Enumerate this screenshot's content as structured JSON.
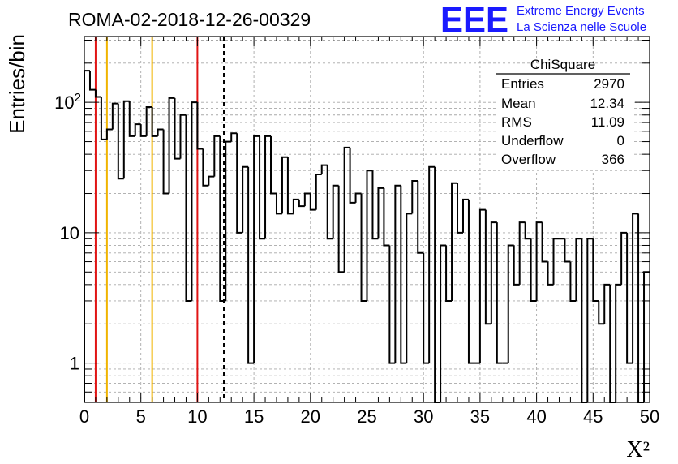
{
  "title": "ROMA-02-2018-12-26-00329",
  "logo": {
    "mark": "EEE",
    "line1": "Extreme Energy Events",
    "line2": "La Scienza nelle Scuole",
    "color": "#1a1aff"
  },
  "stats_box": {
    "header": "ChiSquare",
    "rows": [
      {
        "label": "Entries",
        "value": "2970"
      },
      {
        "label": "Mean",
        "value": "12.34"
      },
      {
        "label": "RMS",
        "value": "11.09"
      },
      {
        "label": "Underflow",
        "value": "0"
      },
      {
        "label": "Overflow",
        "value": "366"
      }
    ]
  },
  "chart_data": {
    "type": "histogram",
    "title": "ROMA-02-2018-12-26-00329",
    "xlabel": "X²",
    "ylabel": "Entries/bin",
    "xlim": [
      0,
      50
    ],
    "ylim": [
      0.5,
      320
    ],
    "yscale": "log",
    "grid": true,
    "bin_width": 0.5,
    "x_ticks": [
      "0",
      "5",
      "10",
      "15",
      "20",
      "25",
      "30",
      "35",
      "40",
      "45",
      "50"
    ],
    "y_ticks": [
      {
        "value": 1,
        "label": "1"
      },
      {
        "value": 10,
        "label": "10"
      },
      {
        "value": 100,
        "label": "10",
        "exponent": "2"
      }
    ],
    "bin_values": [
      175,
      125,
      110,
      52,
      62,
      98,
      26,
      102,
      55,
      68,
      55,
      92,
      55,
      62,
      20,
      108,
      37,
      80,
      3,
      100,
      44,
      23,
      27,
      55,
      3,
      50,
      58,
      10,
      32,
      1,
      55,
      9,
      55,
      20,
      14,
      38,
      14,
      18,
      16,
      20,
      15,
      28,
      33,
      9,
      23,
      5,
      45,
      17,
      20,
      3,
      30,
      9,
      22,
      8,
      1,
      23,
      1,
      14,
      25,
      7,
      1,
      32,
      0.3,
      8,
      3,
      24,
      10,
      18,
      1,
      1,
      15,
      2,
      12,
      1,
      1,
      8,
      4,
      12,
      9,
      3,
      12,
      6,
      4,
      9,
      9,
      6,
      3,
      9,
      0.3,
      9,
      3,
      2,
      4,
      0.3,
      4,
      10,
      1,
      14,
      0.3,
      5
    ],
    "vertical_lines": [
      {
        "x": 1,
        "color": "#e11414",
        "style": "solid"
      },
      {
        "x": 2,
        "color": "#f0b400",
        "style": "solid"
      },
      {
        "x": 6,
        "color": "#f0b400",
        "style": "solid"
      },
      {
        "x": 10,
        "color": "#e11414",
        "style": "solid"
      },
      {
        "x": 12.34,
        "color": "#000000",
        "style": "dashed"
      }
    ],
    "stats": {
      "entries": 2970,
      "mean": 12.34,
      "rms": 11.09,
      "underflow": 0,
      "overflow": 366
    }
  }
}
